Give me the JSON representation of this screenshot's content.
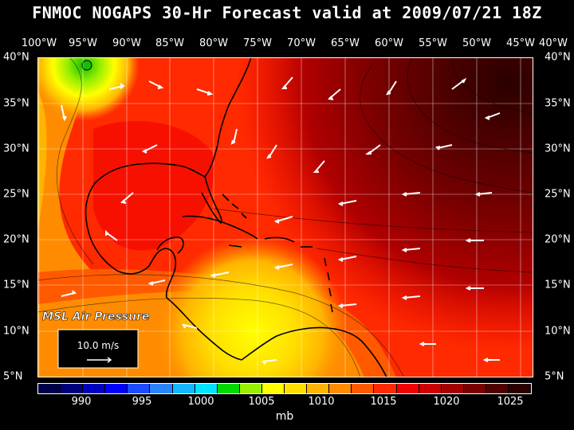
{
  "title": "FNMOC NOGAPS 30-Hr Forecast valid at 2009/07/21 18Z",
  "field_label": "MSL Air Pressure",
  "reference_vector": "10.0 m/s",
  "unit": "mb",
  "longitude_labels": [
    "100°W",
    "95°W",
    "90°W",
    "85°W",
    "80°W",
    "75°W",
    "70°W",
    "65°W",
    "60°W",
    "55°W",
    "50°W",
    "45°W",
    "40°W"
  ],
  "latitude_labels": [
    "40°N",
    "35°N",
    "30°N",
    "25°N",
    "20°N",
    "15°N",
    "10°N",
    "5°N"
  ],
  "colorbar_ticks": [
    "990",
    "995",
    "1000",
    "1005",
    "1010",
    "1015",
    "1020",
    "1025"
  ],
  "colorbar_colors": [
    "#00004a",
    "#00007f",
    "#0000c0",
    "#0000ff",
    "#1c4cff",
    "#2b84ff",
    "#14b8ff",
    "#00e5ff",
    "#00d900",
    "#99ef00",
    "#ffff00",
    "#ffde00",
    "#ffb400",
    "#ff8c00",
    "#ff5a00",
    "#ff2a00",
    "#f20000",
    "#cc0000",
    "#a30000",
    "#7a0000",
    "#500000",
    "#2a0000"
  ],
  "colors": {
    "land_outline": "#000000",
    "wind_arrows": "#ffffff",
    "grid": "#ffffff"
  }
}
